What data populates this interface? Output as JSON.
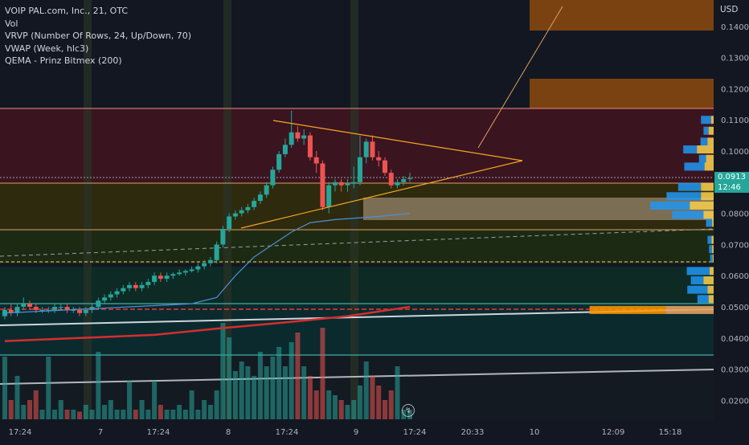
{
  "legend": {
    "symbol": "VOIP PAL.com, Inc., 21, OTC",
    "vol": "Vol",
    "vrvp": "VRVP (Number Of Rows, 24, Up/Down, 70)",
    "vwap": "VWAP (Week, hlc3)",
    "qema": "QEMA - Prinz Bitmex (200)"
  },
  "currency": "USD",
  "last_price": {
    "value": "0.0913",
    "countdown": "12:46"
  },
  "colors": {
    "background": "#131722",
    "up": "#26a69a",
    "down": "#ef5350",
    "vwap": "#2962ff",
    "qema": "#d32f2f",
    "trendline": "#f5a623"
  },
  "chart_data": {
    "type": "candlestick",
    "y_axis": {
      "range": [
        0.013,
        0.151
      ],
      "ticks": [
        "0.1400",
        "0.1300",
        "0.1200",
        "0.1100",
        "0.1000",
        "0.0900",
        "0.0800",
        "0.0700",
        "0.0600",
        "0.0500",
        "0.0400",
        "0.0300",
        "0.0200"
      ]
    },
    "x_axis": {
      "ticks": [
        "17:24",
        "7",
        "17:24",
        "8",
        "17:24",
        "9",
        "17:24",
        "20:33",
        "10",
        "12:09",
        "15:18"
      ]
    },
    "candles": [
      [
        0.047,
        0.05,
        0.046,
        0.049
      ],
      [
        0.049,
        0.051,
        0.047,
        0.048
      ],
      [
        0.048,
        0.051,
        0.047,
        0.05
      ],
      [
        0.05,
        0.053,
        0.049,
        0.051
      ],
      [
        0.051,
        0.052,
        0.049,
        0.05
      ],
      [
        0.05,
        0.051,
        0.048,
        0.049
      ],
      [
        0.049,
        0.05,
        0.048,
        0.049
      ],
      [
        0.049,
        0.05,
        0.048,
        0.049
      ],
      [
        0.049,
        0.051,
        0.048,
        0.05
      ],
      [
        0.05,
        0.051,
        0.049,
        0.05
      ],
      [
        0.05,
        0.051,
        0.048,
        0.049
      ],
      [
        0.049,
        0.05,
        0.048,
        0.049
      ],
      [
        0.049,
        0.05,
        0.047,
        0.048
      ],
      [
        0.048,
        0.05,
        0.047,
        0.049
      ],
      [
        0.049,
        0.051,
        0.048,
        0.05
      ],
      [
        0.05,
        0.053,
        0.049,
        0.052
      ],
      [
        0.052,
        0.054,
        0.051,
        0.053
      ],
      [
        0.053,
        0.055,
        0.052,
        0.054
      ],
      [
        0.054,
        0.056,
        0.053,
        0.055
      ],
      [
        0.055,
        0.057,
        0.054,
        0.056
      ],
      [
        0.056,
        0.058,
        0.055,
        0.057
      ],
      [
        0.057,
        0.058,
        0.055,
        0.056
      ],
      [
        0.056,
        0.058,
        0.055,
        0.057
      ],
      [
        0.057,
        0.059,
        0.056,
        0.058
      ],
      [
        0.058,
        0.061,
        0.057,
        0.06
      ],
      [
        0.06,
        0.061,
        0.058,
        0.059
      ],
      [
        0.059,
        0.061,
        0.058,
        0.06
      ],
      [
        0.06,
        0.061,
        0.059,
        0.0605
      ],
      [
        0.0605,
        0.062,
        0.06,
        0.061
      ],
      [
        0.061,
        0.062,
        0.06,
        0.0615
      ],
      [
        0.0615,
        0.063,
        0.061,
        0.062
      ],
      [
        0.062,
        0.064,
        0.061,
        0.063
      ],
      [
        0.063,
        0.065,
        0.062,
        0.064
      ],
      [
        0.064,
        0.066,
        0.063,
        0.065
      ],
      [
        0.065,
        0.071,
        0.064,
        0.07
      ],
      [
        0.07,
        0.076,
        0.069,
        0.075
      ],
      [
        0.075,
        0.08,
        0.074,
        0.079
      ],
      [
        0.079,
        0.081,
        0.078,
        0.08
      ],
      [
        0.08,
        0.082,
        0.079,
        0.081
      ],
      [
        0.081,
        0.083,
        0.08,
        0.082
      ],
      [
        0.082,
        0.085,
        0.081,
        0.084
      ],
      [
        0.084,
        0.087,
        0.083,
        0.086
      ],
      [
        0.086,
        0.09,
        0.085,
        0.089
      ],
      [
        0.089,
        0.095,
        0.088,
        0.094
      ],
      [
        0.094,
        0.1,
        0.093,
        0.099
      ],
      [
        0.099,
        0.104,
        0.098,
        0.102
      ],
      [
        0.102,
        0.113,
        0.101,
        0.106
      ],
      [
        0.106,
        0.108,
        0.103,
        0.104
      ],
      [
        0.104,
        0.107,
        0.102,
        0.105
      ],
      [
        0.105,
        0.106,
        0.097,
        0.098
      ],
      [
        0.098,
        0.1,
        0.093,
        0.096
      ],
      [
        0.096,
        0.097,
        0.081,
        0.082
      ],
      [
        0.082,
        0.09,
        0.08,
        0.089
      ],
      [
        0.089,
        0.091,
        0.087,
        0.09
      ],
      [
        0.09,
        0.091,
        0.087,
        0.089
      ],
      [
        0.089,
        0.091,
        0.087,
        0.0895
      ],
      [
        0.0895,
        0.095,
        0.088,
        0.09
      ],
      [
        0.09,
        0.105,
        0.089,
        0.098
      ],
      [
        0.098,
        0.104,
        0.096,
        0.103
      ],
      [
        0.103,
        0.105,
        0.097,
        0.098
      ],
      [
        0.098,
        0.1,
        0.095,
        0.097
      ],
      [
        0.097,
        0.098,
        0.092,
        0.093
      ],
      [
        0.093,
        0.094,
        0.088,
        0.089
      ],
      [
        0.089,
        0.091,
        0.088,
        0.09
      ],
      [
        0.09,
        0.092,
        0.089,
        0.091
      ],
      [
        0.091,
        0.093,
        0.09,
        0.0913
      ]
    ],
    "volume": [
      0.65,
      0.2,
      0.45,
      0.15,
      0.2,
      0.3,
      0.1,
      0.65,
      0.1,
      0.2,
      0.1,
      0.1,
      0.08,
      0.15,
      0.1,
      0.7,
      0.15,
      0.2,
      0.1,
      0.1,
      0.4,
      0.1,
      0.2,
      0.1,
      0.4,
      0.15,
      0.1,
      0.1,
      0.15,
      0.1,
      0.3,
      0.1,
      0.2,
      0.15,
      0.3,
      1.0,
      0.85,
      0.5,
      0.6,
      0.55,
      0.45,
      0.7,
      0.55,
      0.65,
      0.75,
      0.55,
      0.8,
      0.9,
      0.55,
      0.45,
      0.3,
      0.95,
      0.3,
      0.25,
      0.2,
      0.15,
      0.2,
      0.35,
      0.6,
      0.45,
      0.35,
      0.2,
      0.3,
      0.55,
      0.1,
      0.1
    ],
    "vwap_path": [
      [
        0.048,
        0
      ],
      [
        0.05,
        20
      ],
      [
        0.051,
        30
      ],
      [
        0.053,
        34
      ],
      [
        0.06,
        37
      ],
      [
        0.066,
        40
      ],
      [
        0.07,
        43
      ],
      [
        0.074,
        46
      ],
      [
        0.077,
        49
      ],
      [
        0.078,
        53
      ],
      [
        0.079,
        60
      ],
      [
        0.08,
        65
      ]
    ],
    "qema_path": [
      [
        0.039,
        0
      ],
      [
        0.04,
        12
      ],
      [
        0.041,
        24
      ],
      [
        0.043,
        34
      ],
      [
        0.045,
        45
      ],
      [
        0.047,
        55
      ],
      [
        0.05,
        65
      ]
    ],
    "profile": [
      {
        "price": 0.11,
        "up": 0.2,
        "down": 0.05
      },
      {
        "price": 0.1065,
        "up": 0.1,
        "down": 0.1
      },
      {
        "price": 0.103,
        "up": 0.14,
        "down": 0.12
      },
      {
        "price": 0.1005,
        "up": 0.27,
        "down": 0.33
      },
      {
        "price": 0.0975,
        "up": 0.14,
        "down": 0.15
      },
      {
        "price": 0.095,
        "up": 0.4,
        "down": 0.18
      },
      {
        "price": 0.0885,
        "up": 0.45,
        "down": 0.25
      },
      {
        "price": 0.0855,
        "up": 0.68,
        "down": 0.25
      },
      {
        "price": 0.0825,
        "up": 0.78,
        "down": 0.47
      },
      {
        "price": 0.0795,
        "up": 0.62,
        "down": 0.2
      },
      {
        "price": 0.077,
        "up": 0.12,
        "down": 0.03
      },
      {
        "price": 0.0715,
        "up": 0.08,
        "down": 0.04
      },
      {
        "price": 0.0685,
        "up": 0.06,
        "down": 0.03
      },
      {
        "price": 0.0655,
        "up": 0.05,
        "down": 0.02
      },
      {
        "price": 0.0615,
        "up": 0.45,
        "down": 0.08
      },
      {
        "price": 0.0585,
        "up": 0.25,
        "down": 0.2
      },
      {
        "price": 0.0555,
        "up": 0.4,
        "down": 0.12
      },
      {
        "price": 0.0525,
        "up": 0.22,
        "down": 0.1
      },
      {
        "price": 0.049,
        "up": 1.5,
        "down": 0.95
      }
    ]
  }
}
